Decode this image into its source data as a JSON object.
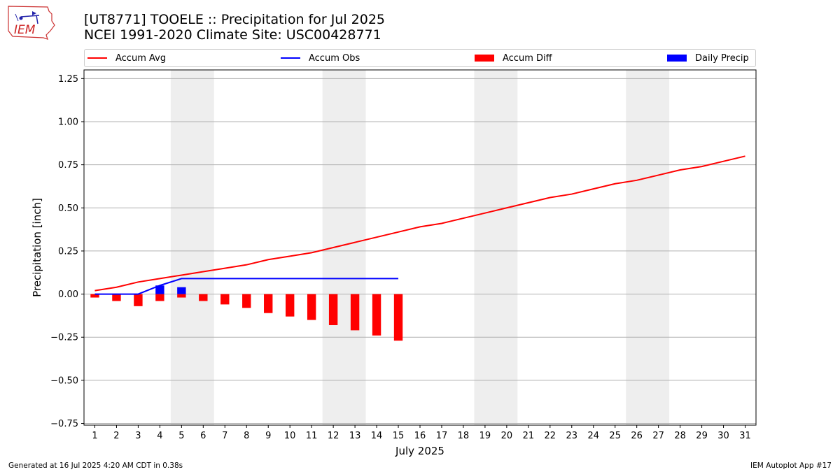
{
  "logo": {
    "text": "IEM"
  },
  "title_line1": "[UT8771] TOOELE :: Precipitation for Jul 2025",
  "title_line2": "NCEI 1991-2020 Climate Site: USC00428771",
  "legend": [
    {
      "label": "Accum Avg",
      "kind": "line",
      "color": "#ff0000"
    },
    {
      "label": "Accum Obs",
      "kind": "line",
      "color": "#0000ff"
    },
    {
      "label": "Accum Diff",
      "kind": "patch",
      "color": "#ff0000"
    },
    {
      "label": "Daily Precip",
      "kind": "patch",
      "color": "#0000ff"
    }
  ],
  "footer_left": "Generated at 16 Jul 2025 4:20 AM CDT in 0.38s",
  "footer_right": "IEM Autoplot App #17",
  "chart_data": {
    "type": "bar",
    "xlabel": "July 2025",
    "ylabel": "Precipitation [inch]",
    "xlim": [
      0.5,
      31.5
    ],
    "ylim": [
      -0.76,
      1.3
    ],
    "yticks": [
      -0.75,
      -0.5,
      -0.25,
      0.0,
      0.25,
      0.5,
      0.75,
      1.0,
      1.25
    ],
    "ytick_labels": [
      "−0.75",
      "−0.50",
      "−0.25",
      "0.00",
      "0.25",
      "0.50",
      "0.75",
      "1.00",
      "1.25"
    ],
    "xticks": [
      "1",
      "2",
      "3",
      "4",
      "5",
      "6",
      "7",
      "8",
      "9",
      "10",
      "11",
      "12",
      "13",
      "14",
      "15",
      "16",
      "17",
      "18",
      "19",
      "20",
      "21",
      "22",
      "23",
      "24",
      "25",
      "26",
      "27",
      "28",
      "29",
      "30",
      "31"
    ],
    "grid": "horizontal",
    "legend_position": "top",
    "weekend_shading": [
      [
        4.5,
        6.5
      ],
      [
        11.5,
        13.5
      ],
      [
        18.5,
        20.5
      ],
      [
        25.5,
        27.5
      ]
    ],
    "shade_color": "#eeeeee",
    "series": [
      {
        "name": "Accum Avg",
        "kind": "line",
        "color": "#ff0000",
        "x": [
          1,
          2,
          3,
          4,
          5,
          6,
          7,
          8,
          9,
          10,
          11,
          12,
          13,
          14,
          15,
          16,
          17,
          18,
          19,
          20,
          21,
          22,
          23,
          24,
          25,
          26,
          27,
          28,
          29,
          30,
          31
        ],
        "values": [
          0.02,
          0.04,
          0.07,
          0.09,
          0.11,
          0.13,
          0.15,
          0.17,
          0.2,
          0.22,
          0.24,
          0.27,
          0.3,
          0.33,
          0.36,
          0.39,
          0.41,
          0.44,
          0.47,
          0.5,
          0.53,
          0.56,
          0.58,
          0.61,
          0.64,
          0.66,
          0.69,
          0.72,
          0.74,
          0.77,
          0.8
        ]
      },
      {
        "name": "Accum Obs",
        "kind": "line",
        "color": "#0000ff",
        "x": [
          1,
          2,
          3,
          4,
          5,
          6,
          7,
          8,
          9,
          10,
          11,
          12,
          13,
          14,
          15
        ],
        "values": [
          0.0,
          0.0,
          0.0,
          0.05,
          0.09,
          0.09,
          0.09,
          0.09,
          0.09,
          0.09,
          0.09,
          0.09,
          0.09,
          0.09,
          0.09
        ]
      },
      {
        "name": "Accum Diff",
        "kind": "bar",
        "color": "#ff0000",
        "x": [
          1,
          2,
          3,
          4,
          5,
          6,
          7,
          8,
          9,
          10,
          11,
          12,
          13,
          14,
          15
        ],
        "values": [
          -0.02,
          -0.04,
          -0.07,
          -0.04,
          -0.02,
          -0.04,
          -0.06,
          -0.08,
          -0.11,
          -0.13,
          -0.15,
          -0.18,
          -0.21,
          -0.24,
          -0.27
        ]
      },
      {
        "name": "Daily Precip",
        "kind": "bar",
        "color": "#0000ff",
        "x": [
          4,
          5
        ],
        "values": [
          0.05,
          0.04
        ]
      }
    ]
  }
}
